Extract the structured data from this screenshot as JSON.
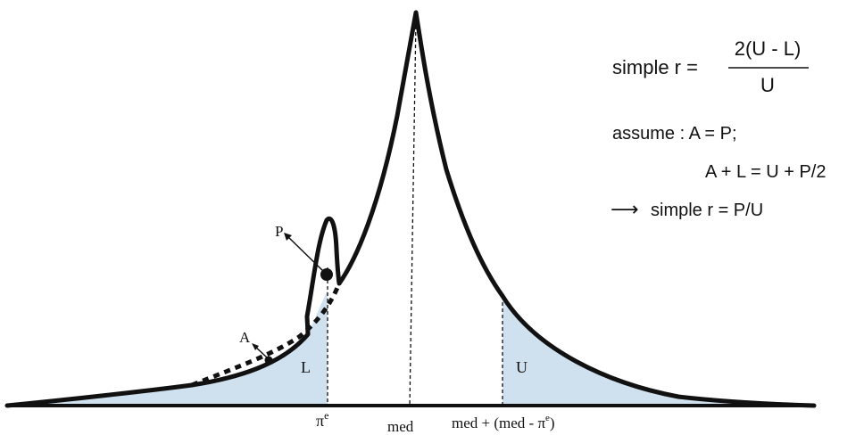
{
  "labels": {
    "P": "P",
    "A": "A",
    "L": "L",
    "U": "U",
    "pi_e": "π",
    "pi_e_sup": "e",
    "med": "med",
    "med_plus_prefix": "med + (med - π",
    "med_plus_sup": "e",
    "med_plus_suffix": ")"
  },
  "formulas": {
    "simple_r_lhs": "simple r =",
    "fraction_numerator": "2(U - L)",
    "fraction_denominator": "U",
    "assume_line": "assume : A = P;",
    "balance_line": "A + L = U + P/2",
    "arrow": "⟶",
    "result_line": "simple r = P/U"
  },
  "colors": {
    "shade": "#cfe0ee",
    "stroke": "#111111"
  }
}
